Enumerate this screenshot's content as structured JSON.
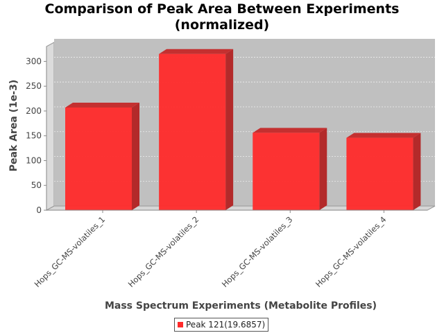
{
  "chart_data": {
    "type": "bar",
    "title_lines": [
      "Comparison of Peak Area Between Experiments",
      "(normalized)"
    ],
    "xlabel": "Mass Spectrum Experiments (Metabolite Profiles)",
    "ylabel": "Peak Area (1e-3)",
    "categories": [
      "Hops_GC-MS-volatiles_1",
      "Hops_GC-MS-volatiles_2",
      "Hops_GC-MS-volatiles_3",
      "Hops_GC-MS-volatiles_4"
    ],
    "series": [
      {
        "name": "Peak 121(19.6857)",
        "values": [
          207,
          315,
          156,
          146
        ],
        "color": "#ff2a2a"
      }
    ],
    "ylim": [
      0,
      330
    ],
    "yticks": [
      0,
      50,
      100,
      150,
      200,
      250,
      300
    ],
    "grid": true,
    "legend": "bottom-center",
    "render_3d": true
  }
}
